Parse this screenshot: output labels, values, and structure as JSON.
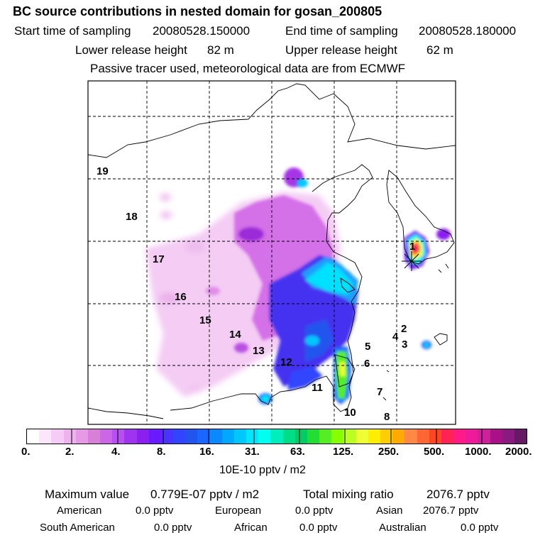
{
  "header": {
    "title": "BC  source contributions in nested domain for gosan_200805",
    "start_label": "Start time of sampling",
    "start_value": "20080528.150000",
    "end_label": "End time of sampling",
    "end_value": "20080528.180000",
    "lower_label": "Lower release height",
    "lower_value": "82 m",
    "upper_label": "Upper release height",
    "upper_value": "62 m",
    "tracer_note": "Passive tracer used, meteorological data are from ECMWF"
  },
  "map": {
    "region_labels": [
      "19",
      "18",
      "17",
      "16",
      "15",
      "14",
      "13",
      "12",
      "11",
      "10",
      "8",
      "7",
      "6",
      "5",
      "4",
      "3",
      "2",
      "1"
    ]
  },
  "colorbar": {
    "tick_labels": [
      "0.",
      "2.",
      "4.",
      "8.",
      "16.",
      "31.",
      "63.",
      "125.",
      "250.",
      "500.",
      "1000.",
      "2000."
    ],
    "colors": [
      "#ffffff",
      "#fbe6fb",
      "#f5ccf5",
      "#eeb3ee",
      "#e699e6",
      "#d97fd9",
      "#cc66e6",
      "#b84ff2",
      "#a033f2",
      "#8a1ff0",
      "#6a1aff",
      "#4a33ff",
      "#3344ff",
      "#2255ee",
      "#1a66ff",
      "#0a88ff",
      "#00a8ff",
      "#00c8ff",
      "#00e6ff",
      "#00ffee",
      "#00eebb",
      "#00dd88",
      "#00cc66",
      "#22dd33",
      "#55ee22",
      "#88ff00",
      "#bbff22",
      "#eeff33",
      "#ffee00",
      "#ffcc00",
      "#ffaa00",
      "#ff8844",
      "#ff6633",
      "#ff4422",
      "#ff2255",
      "#ff1a88",
      "#ee1a9a",
      "#cc2299",
      "#aa1188",
      "#881a80",
      "#661a66"
    ],
    "units": "10E-10 pptv / m2"
  },
  "summary": {
    "max_label": "Maximum value",
    "max_value": "0.779E-07 pptv / m2",
    "total_label": "Total mixing ratio",
    "total_value": "2076.7 pptv",
    "american_label": "American",
    "american_value": "0.0 pptv",
    "european_label": "European",
    "european_value": "0.0 pptv",
    "asian_label": "Asian",
    "asian_value": "2076.7 pptv",
    "south_american_label": "South American",
    "south_american_value": "0.0 pptv",
    "african_label": "African",
    "african_value": "0.0 pptv",
    "australian_label": "Australian",
    "australian_value": "0.0 pptv"
  }
}
